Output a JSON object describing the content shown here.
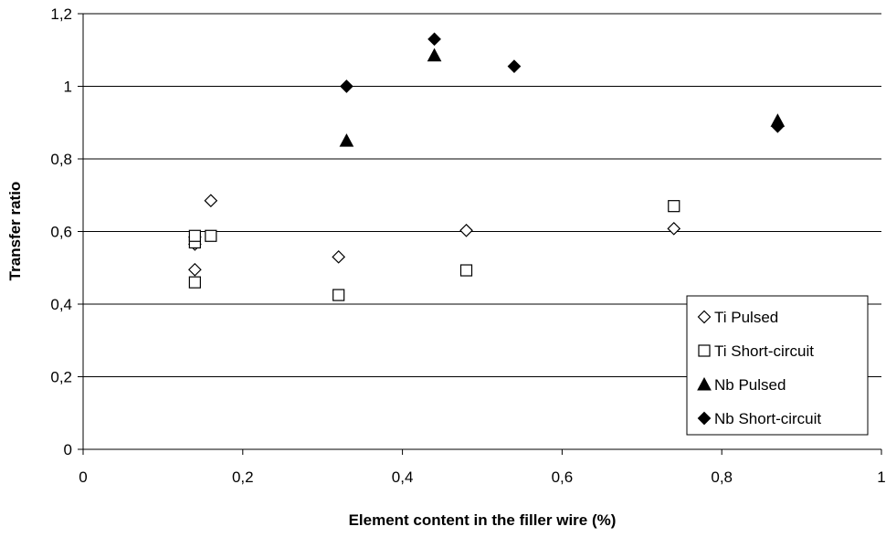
{
  "chart_data": {
    "type": "scatter",
    "title": "",
    "xlabel": "Element content in the filler wire (%)",
    "ylabel": "Transfer ratio",
    "xlim": [
      0,
      1
    ],
    "ylim": [
      0,
      1.2
    ],
    "x_ticks": [
      "0",
      "0,2",
      "0,4",
      "0,6",
      "0,8",
      "1"
    ],
    "y_ticks": [
      "0",
      "0,2",
      "0,4",
      "0,6",
      "0,8",
      "1",
      "1,2"
    ],
    "grid": "horizontal major gridlines",
    "legend_position": "bottom-right",
    "series": [
      {
        "name": "Ti Pulsed",
        "marker": "diamond-open",
        "color": "#000000",
        "points": [
          [
            0.14,
            0.495
          ],
          [
            0.14,
            0.565
          ],
          [
            0.14,
            0.585
          ],
          [
            0.16,
            0.685
          ],
          [
            0.32,
            0.53
          ],
          [
            0.48,
            0.603
          ],
          [
            0.74,
            0.608
          ]
        ]
      },
      {
        "name": "Ti Short-circuit",
        "marker": "square-open",
        "color": "#000000",
        "points": [
          [
            0.14,
            0.46
          ],
          [
            0.14,
            0.57
          ],
          [
            0.14,
            0.588
          ],
          [
            0.16,
            0.588
          ],
          [
            0.32,
            0.425
          ],
          [
            0.48,
            0.493
          ],
          [
            0.74,
            0.67
          ]
        ]
      },
      {
        "name": "Nb Pulsed",
        "marker": "triangle-filled",
        "color": "#000000",
        "points": [
          [
            0.33,
            0.85
          ],
          [
            0.44,
            1.085
          ],
          [
            0.87,
            0.905
          ]
        ]
      },
      {
        "name": "Nb Short-circuit",
        "marker": "diamond-filled",
        "color": "#000000",
        "points": [
          [
            0.33,
            1.0
          ],
          [
            0.44,
            1.13
          ],
          [
            0.54,
            1.055
          ],
          [
            0.87,
            0.89
          ]
        ]
      }
    ]
  }
}
